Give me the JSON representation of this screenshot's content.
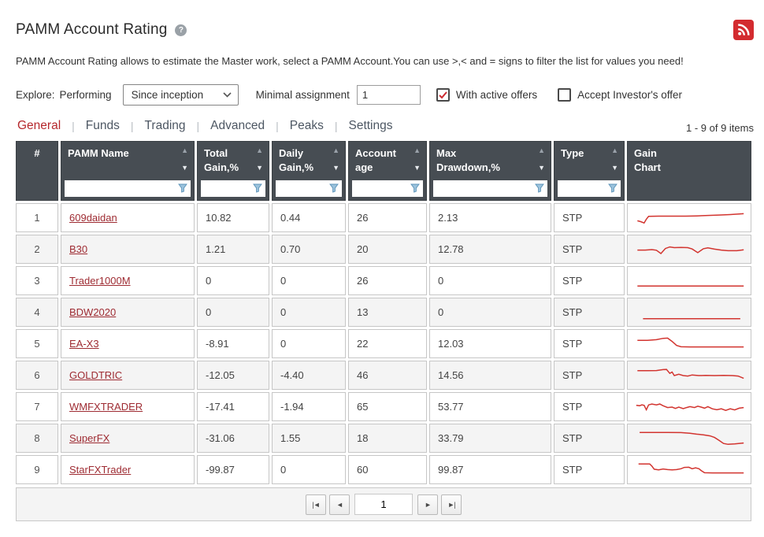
{
  "header": {
    "title": "PAMM Account Rating",
    "description": "PAMM Account Rating allows to estimate the Master work, select a PAMM Account.You can use >,< and = signs to filter the list for values you need!"
  },
  "filters": {
    "explore_label": "Explore:",
    "explore_mode": "Performing",
    "period_select_value": "Since inception",
    "minimal_assignment_label": "Minimal assignment",
    "minimal_assignment_value": "1",
    "with_active_offers": {
      "label": "With active offers",
      "checked": true
    },
    "accept_investors_offer": {
      "label": "Accept Investor's offer",
      "checked": false
    }
  },
  "tabs": [
    {
      "label": "General",
      "active": true
    },
    {
      "label": "Funds",
      "active": false
    },
    {
      "label": "Trading",
      "active": false
    },
    {
      "label": "Advanced",
      "active": false
    },
    {
      "label": "Peaks",
      "active": false
    },
    {
      "label": "Settings",
      "active": false
    }
  ],
  "items_count": "1 - 9 of 9 items",
  "table": {
    "columns": [
      {
        "key": "num",
        "label": "#",
        "sortable": false,
        "filterable": false,
        "width": 54
      },
      {
        "key": "name",
        "label": "PAMM Name",
        "sortable": true,
        "filterable": true,
        "width": 170
      },
      {
        "key": "total_gain",
        "label": "Total\nGain,%",
        "sortable": true,
        "filterable": true,
        "width": 92
      },
      {
        "key": "daily_gain",
        "label": "Daily\nGain,%",
        "sortable": true,
        "filterable": true,
        "width": 94
      },
      {
        "key": "age",
        "label": "Account\nage",
        "sortable": true,
        "filterable": true,
        "width": 100
      },
      {
        "key": "max_drawdown",
        "label": "Max\nDrawdown,%",
        "sortable": true,
        "filterable": true,
        "width": 155
      },
      {
        "key": "type",
        "label": "Type",
        "sortable": true,
        "filterable": true,
        "width": 90
      },
      {
        "key": "spark",
        "label": "Gain\nChart",
        "sortable": false,
        "filterable": false,
        "width": 158
      }
    ],
    "rows": [
      {
        "num": "1",
        "name": "609daidan",
        "total_gain": "10.82",
        "daily_gain": "0.44",
        "age": "26",
        "max_drawdown": "2.13",
        "type": "STP",
        "spark": [
          [
            3,
            62
          ],
          [
            6,
            66
          ],
          [
            9,
            72
          ],
          [
            11,
            55
          ],
          [
            13,
            42
          ],
          [
            22,
            41
          ],
          [
            34,
            41
          ],
          [
            46,
            41
          ],
          [
            56,
            40
          ],
          [
            66,
            38
          ],
          [
            76,
            36
          ],
          [
            86,
            34
          ],
          [
            98,
            30
          ]
        ]
      },
      {
        "num": "2",
        "name": "B30",
        "total_gain": "1.21",
        "daily_gain": "0.70",
        "age": "20",
        "max_drawdown": "12.78",
        "type": "STP",
        "spark": [
          [
            3,
            52
          ],
          [
            10,
            52
          ],
          [
            16,
            50
          ],
          [
            20,
            53
          ],
          [
            24,
            68
          ],
          [
            28,
            45
          ],
          [
            32,
            38
          ],
          [
            36,
            41
          ],
          [
            42,
            40
          ],
          [
            48,
            41
          ],
          [
            52,
            47
          ],
          [
            57,
            64
          ],
          [
            62,
            46
          ],
          [
            66,
            42
          ],
          [
            72,
            48
          ],
          [
            78,
            52
          ],
          [
            84,
            55
          ],
          [
            92,
            55
          ],
          [
            98,
            51
          ]
        ]
      },
      {
        "num": "3",
        "name": "Trader1000M",
        "total_gain": "0",
        "daily_gain": "0",
        "age": "26",
        "max_drawdown": "0",
        "type": "STP",
        "spark": [
          [
            3,
            72
          ],
          [
            98,
            72
          ]
        ]
      },
      {
        "num": "4",
        "name": "BDW2020",
        "total_gain": "0",
        "daily_gain": "0",
        "age": "13",
        "max_drawdown": "0",
        "type": "STP",
        "spark": [
          [
            8,
            78
          ],
          [
            95,
            78
          ]
        ]
      },
      {
        "num": "5",
        "name": "EA-X3",
        "total_gain": "-8.91",
        "daily_gain": "0",
        "age": "22",
        "max_drawdown": "12.03",
        "type": "STP",
        "spark": [
          [
            3,
            33
          ],
          [
            12,
            33
          ],
          [
            20,
            30
          ],
          [
            26,
            24
          ],
          [
            30,
            23
          ],
          [
            34,
            38
          ],
          [
            38,
            56
          ],
          [
            42,
            62
          ],
          [
            50,
            63
          ],
          [
            98,
            63
          ]
        ]
      },
      {
        "num": "6",
        "name": "GOLDTRIC",
        "total_gain": "-12.05",
        "daily_gain": "-4.40",
        "age": "46",
        "max_drawdown": "14.56",
        "type": "STP",
        "spark": [
          [
            3,
            28
          ],
          [
            12,
            28
          ],
          [
            20,
            27
          ],
          [
            26,
            23
          ],
          [
            29,
            22
          ],
          [
            32,
            40
          ],
          [
            34,
            34
          ],
          [
            36,
            50
          ],
          [
            40,
            44
          ],
          [
            44,
            50
          ],
          [
            48,
            52
          ],
          [
            52,
            47
          ],
          [
            58,
            50
          ],
          [
            64,
            49
          ],
          [
            72,
            50
          ],
          [
            80,
            49
          ],
          [
            88,
            50
          ],
          [
            93,
            52
          ],
          [
            98,
            62
          ]
        ]
      },
      {
        "num": "7",
        "name": "WMFXTRADER",
        "total_gain": "-17.41",
        "daily_gain": "-1.94",
        "age": "65",
        "max_drawdown": "53.77",
        "type": "STP",
        "spark": [
          [
            2,
            42
          ],
          [
            5,
            44
          ],
          [
            7,
            40
          ],
          [
            9,
            42
          ],
          [
            11,
            62
          ],
          [
            13,
            40
          ],
          [
            16,
            36
          ],
          [
            20,
            40
          ],
          [
            23,
            36
          ],
          [
            26,
            44
          ],
          [
            30,
            52
          ],
          [
            34,
            50
          ],
          [
            37,
            56
          ],
          [
            40,
            50
          ],
          [
            44,
            57
          ],
          [
            47,
            52
          ],
          [
            50,
            48
          ],
          [
            54,
            52
          ],
          [
            57,
            46
          ],
          [
            60,
            50
          ],
          [
            63,
            55
          ],
          [
            66,
            48
          ],
          [
            70,
            58
          ],
          [
            74,
            62
          ],
          [
            78,
            58
          ],
          [
            82,
            65
          ],
          [
            86,
            58
          ],
          [
            90,
            63
          ],
          [
            94,
            55
          ],
          [
            98,
            52
          ]
        ]
      },
      {
        "num": "8",
        "name": "SuperFX",
        "total_gain": "-31.06",
        "daily_gain": "1.55",
        "age": "18",
        "max_drawdown": "33.79",
        "type": "STP",
        "spark": [
          [
            5,
            22
          ],
          [
            30,
            22
          ],
          [
            42,
            23
          ],
          [
            50,
            26
          ],
          [
            56,
            30
          ],
          [
            62,
            33
          ],
          [
            68,
            38
          ],
          [
            72,
            45
          ],
          [
            76,
            58
          ],
          [
            80,
            72
          ],
          [
            84,
            76
          ],
          [
            90,
            74
          ],
          [
            98,
            70
          ]
        ]
      },
      {
        "num": "9",
        "name": "StarFXTrader",
        "total_gain": "-99.87",
        "daily_gain": "0",
        "age": "60",
        "max_drawdown": "99.87",
        "type": "STP",
        "spark": [
          [
            4,
            22
          ],
          [
            14,
            22
          ],
          [
            16,
            32
          ],
          [
            18,
            46
          ],
          [
            22,
            49
          ],
          [
            26,
            45
          ],
          [
            30,
            48
          ],
          [
            34,
            49
          ],
          [
            38,
            48
          ],
          [
            42,
            44
          ],
          [
            45,
            38
          ],
          [
            49,
            37
          ],
          [
            52,
            44
          ],
          [
            55,
            40
          ],
          [
            58,
            44
          ],
          [
            60,
            52
          ],
          [
            63,
            62
          ],
          [
            70,
            63
          ],
          [
            98,
            63
          ]
        ]
      }
    ]
  },
  "pagination": {
    "first": "|◄",
    "prev": "◄",
    "page": "1",
    "next": "►",
    "last": "►|"
  },
  "colors": {
    "accent_red": "#d32b2f",
    "tab_active": "#b5282d",
    "link": "#9e2b32",
    "header_bg": "#474d53",
    "sparkline": "#d2342f",
    "stripe_row": "#f4f4f4",
    "funnel_icon": "#9cc3dd"
  }
}
